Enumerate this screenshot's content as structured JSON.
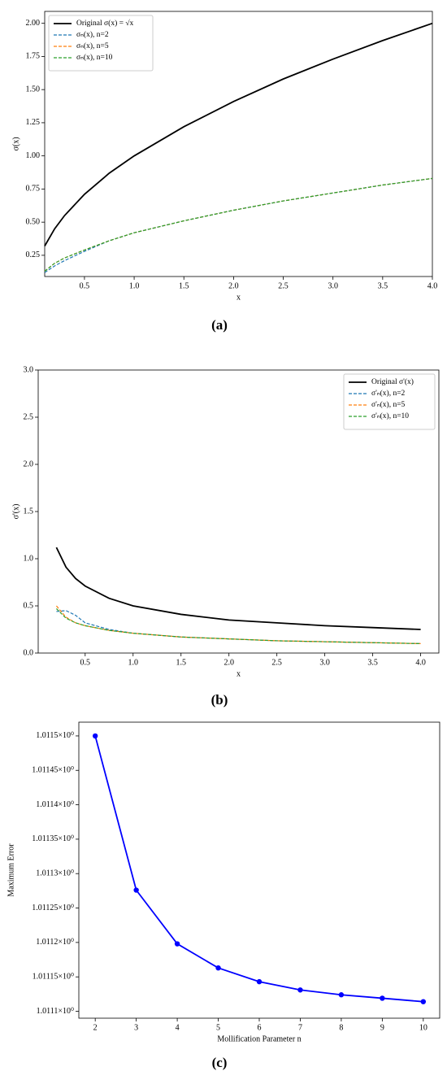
{
  "chart_data": [
    {
      "type": "line",
      "caption": "(a)",
      "x_label": "x",
      "y_label": "σ(x)",
      "legend": "upper left",
      "x": [
        0.1,
        0.2,
        0.3,
        0.5,
        0.75,
        1,
        1.5,
        2,
        2.5,
        3,
        3.5,
        4
      ],
      "series": [
        {
          "name": "Original σ(x) = √x",
          "color": "#000000",
          "linestyle": "solid",
          "values": [
            0.32,
            0.45,
            0.55,
            0.71,
            0.87,
            1.0,
            1.22,
            1.41,
            1.58,
            1.73,
            1.87,
            2.0
          ]
        },
        {
          "name": "σₙ(x), n=2",
          "color": "#1f77b4",
          "linestyle": "dashed",
          "values": [
            0.12,
            0.17,
            0.21,
            0.28,
            0.36,
            0.42,
            0.51,
            0.59,
            0.66,
            0.72,
            0.78,
            0.83
          ]
        },
        {
          "name": "σₙ(x), n=5",
          "color": "#ff7f0e",
          "linestyle": "dashed",
          "values": [
            0.13,
            0.19,
            0.23,
            0.29,
            0.36,
            0.42,
            0.51,
            0.59,
            0.66,
            0.72,
            0.78,
            0.83
          ]
        },
        {
          "name": "σₙ(x), n=10",
          "color": "#2ca02c",
          "linestyle": "dashed",
          "values": [
            0.13,
            0.19,
            0.23,
            0.29,
            0.36,
            0.42,
            0.51,
            0.59,
            0.66,
            0.72,
            0.78,
            0.83
          ]
        }
      ],
      "xlim": [
        0.1,
        4.0
      ],
      "xticks": [
        0.5,
        {
          "value": 1,
          "label": "1.0"
        },
        1.5,
        {
          "value": 2,
          "label": "2.0"
        },
        2.5,
        {
          "value": 3,
          "label": "3.0"
        },
        3.5,
        {
          "value": 4,
          "label": "4.0"
        }
      ],
      "ylim": [
        0.09,
        2.09
      ],
      "yticks": [
        0.25,
        {
          "value": 0.5,
          "label": "0.50"
        },
        0.75,
        {
          "value": 1,
          "label": "1.00"
        },
        1.25,
        {
          "value": 1.5,
          "label": "1.50"
        },
        1.75,
        {
          "value": 2,
          "label": "2.00"
        }
      ]
    },
    {
      "type": "line",
      "caption": "(b)",
      "x_label": "x",
      "y_label": "σ'(x)",
      "legend": "upper right",
      "x": [
        0.2,
        0.3,
        0.4,
        0.5,
        0.75,
        1,
        1.5,
        2,
        2.5,
        3,
        3.5,
        4
      ],
      "series": [
        {
          "name": "Original σ'(x)",
          "color": "#000000",
          "linestyle": "solid",
          "values": [
            1.12,
            0.91,
            0.79,
            0.71,
            0.58,
            0.5,
            0.41,
            0.35,
            0.32,
            0.29,
            0.27,
            0.25
          ]
        },
        {
          "name": "σ'ₙ(x), n=2",
          "color": "#1f77b4",
          "linestyle": "dashed",
          "values": [
            0.44,
            0.45,
            0.4,
            0.32,
            0.25,
            0.21,
            0.17,
            0.15,
            0.13,
            0.12,
            0.11,
            0.1
          ]
        },
        {
          "name": "σ'ₙ(x), n=5",
          "color": "#ff7f0e",
          "linestyle": "dashed",
          "values": [
            0.5,
            0.38,
            0.32,
            0.29,
            0.24,
            0.21,
            0.17,
            0.15,
            0.13,
            0.12,
            0.11,
            0.1
          ]
        },
        {
          "name": "σ'ₙ(x), n=10",
          "color": "#2ca02c",
          "linestyle": "dashed",
          "values": [
            0.47,
            0.37,
            0.32,
            0.29,
            0.24,
            0.21,
            0.17,
            0.15,
            0.13,
            0.12,
            0.11,
            0.1
          ]
        }
      ],
      "xlim": [
        0.01,
        4.19
      ],
      "xticks": [
        0.5,
        {
          "value": 1,
          "label": "1.0"
        },
        1.5,
        {
          "value": 2,
          "label": "2.0"
        },
        2.5,
        {
          "value": 3,
          "label": "3.0"
        },
        3.5,
        {
          "value": 4,
          "label": "4.0"
        }
      ],
      "ylim": [
        0,
        3
      ],
      "yticks": [
        {
          "value": 0,
          "label": "0.0"
        },
        0.5,
        {
          "value": 1,
          "label": "1.0"
        },
        1.5,
        {
          "value": 2,
          "label": "2.0"
        },
        2.5,
        {
          "value": 3,
          "label": "3.0"
        }
      ]
    },
    {
      "type": "line",
      "caption": "(c)",
      "x_label": "Mollification Parameter n",
      "y_label": "Maximum Error",
      "log_y": true,
      "markers": true,
      "x": [
        2,
        3,
        4,
        5,
        6,
        7,
        8,
        9,
        10
      ],
      "series": [
        {
          "color": "#0000ff",
          "linestyle": "solid",
          "values": [
            1.0115,
            1.011276,
            1.011198,
            1.011163,
            1.011143,
            1.011131,
            1.011124,
            1.011119,
            1.011114
          ]
        }
      ],
      "xlim": [
        1.6,
        10.4
      ],
      "xticks": [
        2,
        3,
        4,
        5,
        6,
        7,
        8,
        9,
        10
      ],
      "ylim": [
        1.01109,
        1.01152
      ],
      "yticks": [
        {
          "value": 1.0111,
          "label": "1.0111×10⁰"
        },
        {
          "value": 1.01115,
          "label": "1.01115×10⁰"
        },
        {
          "value": 1.0112,
          "label": "1.0112×10⁰"
        },
        {
          "value": 1.01125,
          "label": "1.01125×10⁰"
        },
        {
          "value": 1.0113,
          "label": "1.0113×10⁰"
        },
        {
          "value": 1.01135,
          "label": "1.01135×10⁰"
        },
        {
          "value": 1.0114,
          "label": "1.0114×10⁰"
        },
        {
          "value": 1.01145,
          "label": "1.01145×10⁰"
        },
        {
          "value": 1.0115,
          "label": "1.0115×10⁰"
        }
      ]
    }
  ]
}
